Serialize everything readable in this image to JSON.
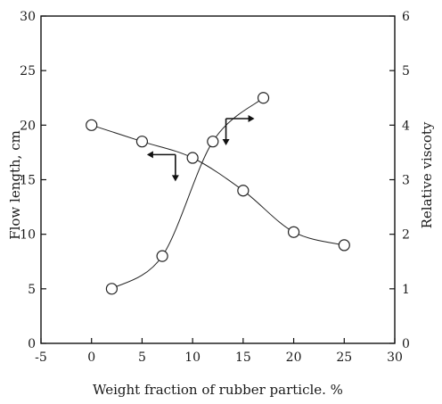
{
  "chart_data": {
    "type": "line",
    "title": "",
    "xlabel": "Weight fraction of rubber particle. %",
    "ylabel_left": "Flow length, cm",
    "ylabel_right": "Relative viscoty",
    "xlim": [
      -5,
      30
    ],
    "ylim_left": [
      0,
      30
    ],
    "ylim_right": [
      0,
      6
    ],
    "x_ticks": [
      -5,
      0,
      5,
      10,
      15,
      20,
      25,
      30
    ],
    "x_tick_labels": [
      "-5",
      "0",
      "5",
      "10",
      "15",
      "20",
      "25",
      "30"
    ],
    "y_left_ticks": [
      0,
      5,
      10,
      15,
      20,
      25,
      30
    ],
    "y_left_tick_labels": [
      "0",
      "5",
      "10",
      "15",
      "20",
      "25",
      "30"
    ],
    "y_right_ticks": [
      0,
      1,
      2,
      3,
      4,
      5,
      6
    ],
    "y_right_tick_labels": [
      "0",
      "1",
      "2",
      "3",
      "4",
      "5",
      "6"
    ],
    "grid": false,
    "series": [
      {
        "axis": "left",
        "marker": "open-circle",
        "line": "smooth",
        "x": [
          0,
          5,
          10,
          15,
          20,
          25
        ],
        "y": [
          20.0,
          18.5,
          17.0,
          14.0,
          10.2,
          9.0
        ]
      },
      {
        "axis": "right",
        "marker": "open-circle",
        "line": "smooth",
        "x": [
          2,
          7,
          12,
          17
        ],
        "y": [
          1.0,
          1.6,
          3.7,
          4.5
        ]
      }
    ],
    "annotations": [
      {
        "kind": "axis-indicator-arrow",
        "points_to": "left",
        "series": 0,
        "anchor_x": 8.3,
        "anchor_y_left": 17.3
      },
      {
        "kind": "axis-indicator-arrow",
        "points_to": "right",
        "series": 1,
        "anchor_x": 13.3,
        "anchor_y_left": 20.6
      }
    ]
  }
}
